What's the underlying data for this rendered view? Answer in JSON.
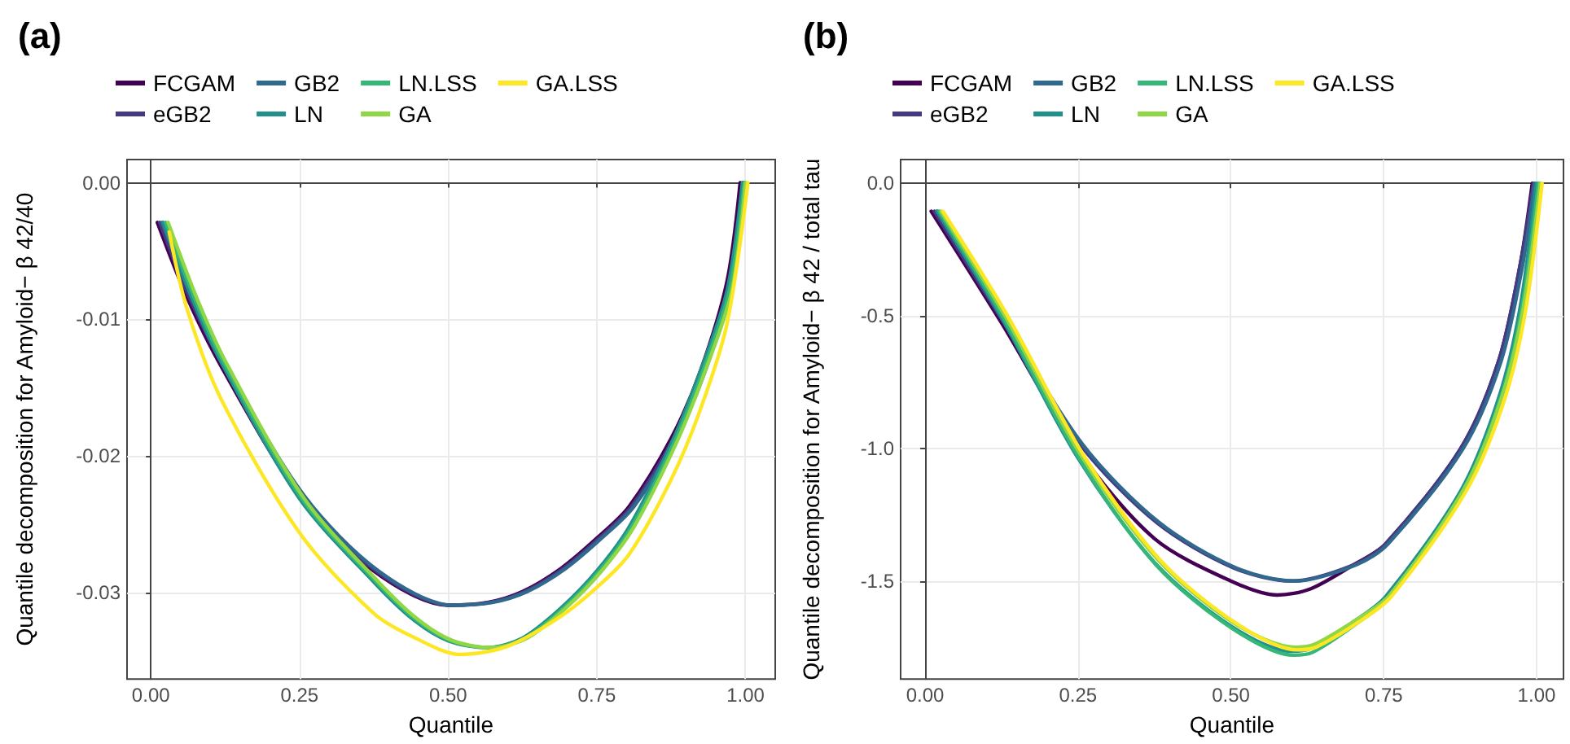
{
  "chart_data": [
    {
      "type": "line",
      "title": "(a)",
      "xlabel": "Quantile",
      "ylabel": "Quantile decomposition for Amyloid− β 42/40",
      "xlim": [
        -0.04,
        1.05
      ],
      "ylim": [
        -0.0363,
        0.0017
      ],
      "xticks": [
        {
          "value": 0,
          "label": "0.00"
        },
        {
          "value": 0.25,
          "label": "0.25"
        },
        {
          "value": 0.5,
          "label": "0.50"
        },
        {
          "value": 0.75,
          "label": "0.75"
        },
        {
          "value": 1,
          "label": "1.00"
        }
      ],
      "yticks": [
        {
          "value": -0.03,
          "label": "-0.03"
        },
        {
          "value": -0.02,
          "label": "-0.02"
        },
        {
          "value": -0.01,
          "label": "-0.01"
        },
        {
          "value": 0,
          "label": "0.00"
        }
      ],
      "grid": true,
      "legend": "top left",
      "marker": "none",
      "line_style": "solid",
      "series": [
        {
          "name": "FCGAM",
          "color": "#440154",
          "x": [
            0.011,
            0.06,
            0.118,
            0.25,
            0.375,
            0.5,
            0.566,
            0.625,
            0.69,
            0.75,
            0.804,
            0.875,
            0.924,
            0.969,
            0.991
          ],
          "values": [
            -0.0029,
            -0.0083,
            -0.0134,
            -0.0229,
            -0.0284,
            -0.0309,
            -0.0307,
            -0.0299,
            -0.0282,
            -0.026,
            -0.0237,
            -0.0187,
            -0.0138,
            -0.0072,
            0
          ]
        },
        {
          "name": "eGB2",
          "color": "#443a83",
          "x": [
            0.015,
            0.064,
            0.122,
            0.254,
            0.379,
            0.504,
            0.57,
            0.629,
            0.694,
            0.754,
            0.808,
            0.879,
            0.928,
            0.973,
            0.995
          ],
          "values": [
            -0.0029,
            -0.0083,
            -0.0134,
            -0.0229,
            -0.0284,
            -0.0309,
            -0.0307,
            -0.0299,
            -0.0282,
            -0.026,
            -0.0237,
            -0.0187,
            -0.0138,
            -0.0072,
            0
          ]
        },
        {
          "name": "GB2",
          "color": "#31688e",
          "x": [
            0.019,
            0.068,
            0.126,
            0.258,
            0.383,
            0.508,
            0.574,
            0.633,
            0.698,
            0.758,
            0.812,
            0.883,
            0.932,
            0.977,
            0.998
          ],
          "values": [
            -0.0029,
            -0.0083,
            -0.0134,
            -0.0229,
            -0.0284,
            -0.0309,
            -0.0307,
            -0.0299,
            -0.0282,
            -0.026,
            -0.0237,
            -0.0187,
            -0.0138,
            -0.0072,
            0
          ]
        },
        {
          "name": "LN",
          "color": "#21908c",
          "x": [
            0.021,
            0.07,
            0.118,
            0.25,
            0.375,
            0.44,
            0.5,
            0.566,
            0.625,
            0.69,
            0.75,
            0.804,
            0.875,
            0.924,
            0.969,
            0.995
          ],
          "values": [
            -0.0029,
            -0.0085,
            -0.0131,
            -0.0231,
            -0.0292,
            -0.0319,
            -0.0335,
            -0.034,
            -0.0333,
            -0.0311,
            -0.0284,
            -0.0252,
            -0.0191,
            -0.0138,
            -0.0079,
            0
          ]
        },
        {
          "name": "LN.LSS",
          "color": "#35b779",
          "x": [
            0.025,
            0.074,
            0.122,
            0.254,
            0.379,
            0.444,
            0.504,
            0.57,
            0.629,
            0.694,
            0.754,
            0.808,
            0.879,
            0.928,
            0.973,
            0.998
          ],
          "values": [
            -0.0029,
            -0.0085,
            -0.0131,
            -0.0231,
            -0.0292,
            -0.0319,
            -0.0335,
            -0.034,
            -0.0333,
            -0.0311,
            -0.0284,
            -0.0252,
            -0.0191,
            -0.0138,
            -0.0079,
            0
          ]
        },
        {
          "name": "GA",
          "color": "#8fd744",
          "x": [
            0.029,
            0.078,
            0.126,
            0.258,
            0.383,
            0.448,
            0.508,
            0.574,
            0.633,
            0.698,
            0.758,
            0.812,
            0.883,
            0.932,
            0.977,
            1.0
          ],
          "values": [
            -0.0029,
            -0.0085,
            -0.0131,
            -0.0231,
            -0.0292,
            -0.0319,
            -0.0335,
            -0.034,
            -0.0333,
            -0.0311,
            -0.0284,
            -0.0252,
            -0.0191,
            -0.0138,
            -0.0079,
            0
          ]
        },
        {
          "name": "GA.LSS",
          "color": "#fde725",
          "x": [
            0.031,
            0.06,
            0.118,
            0.25,
            0.375,
            0.44,
            0.52,
            0.6,
            0.69,
            0.75,
            0.804,
            0.875,
            0.924,
            0.969,
            1.004
          ],
          "values": [
            -0.0036,
            -0.0091,
            -0.0158,
            -0.0256,
            -0.0315,
            -0.0332,
            -0.0345,
            -0.0339,
            -0.0317,
            -0.0296,
            -0.0272,
            -0.0217,
            -0.0166,
            -0.0103,
            0
          ]
        }
      ]
    },
    {
      "type": "line",
      "title": "(b)",
      "xlabel": "Quantile",
      "ylabel": "Quantile decomposition for Amyloid− β 42 / total tau",
      "xlim": [
        -0.04,
        1.044
      ],
      "ylim": [
        -1.87,
        0.09
      ],
      "xticks": [
        {
          "value": 0,
          "label": "0.00"
        },
        {
          "value": 0.25,
          "label": "0.25"
        },
        {
          "value": 0.5,
          "label": "0.50"
        },
        {
          "value": 0.75,
          "label": "0.75"
        },
        {
          "value": 1,
          "label": "1.00"
        }
      ],
      "yticks": [
        {
          "value": -1.5,
          "label": "-1.5"
        },
        {
          "value": -1,
          "label": "-1.0"
        },
        {
          "value": -0.5,
          "label": "-0.5"
        },
        {
          "value": 0,
          "label": "0.0"
        }
      ],
      "grid": true,
      "legend": "top left",
      "marker": "none",
      "line_style": "solid",
      "series": [
        {
          "name": "FCGAM",
          "color": "#440154",
          "x": [
            0.01,
            0.126,
            0.25,
            0.375,
            0.5,
            0.576,
            0.63,
            0.7,
            0.753,
            0.876,
            0.938,
            0.973,
            0.993
          ],
          "values": [
            -0.105,
            -0.53,
            -1.006,
            -1.34,
            -1.5,
            -1.553,
            -1.53,
            -1.44,
            -1.36,
            -1.0,
            -0.67,
            -0.31,
            0
          ]
        },
        {
          "name": "eGB2",
          "color": "#443a83",
          "x": [
            0.015,
            0.13,
            0.254,
            0.379,
            0.504,
            0.6,
            0.7,
            0.753,
            0.876,
            0.938,
            0.973,
            0.995
          ],
          "values": [
            -0.105,
            -0.53,
            -0.986,
            -1.28,
            -1.45,
            -1.5,
            -1.44,
            -1.36,
            -1.0,
            -0.67,
            -0.31,
            0
          ]
        },
        {
          "name": "GB2",
          "color": "#31688e",
          "x": [
            0.019,
            0.134,
            0.258,
            0.383,
            0.508,
            0.604,
            0.704,
            0.757,
            0.88,
            0.942,
            0.977,
            0.997
          ],
          "values": [
            -0.105,
            -0.53,
            -0.986,
            -1.28,
            -1.45,
            -1.5,
            -1.44,
            -1.36,
            -1.0,
            -0.67,
            -0.31,
            0
          ]
        },
        {
          "name": "LN",
          "color": "#21908c",
          "x": [
            0.02,
            0.126,
            0.25,
            0.375,
            0.5,
            0.6,
            0.63,
            0.7,
            0.753,
            0.876,
            0.938,
            0.973,
            1.0
          ],
          "values": [
            -0.105,
            -0.51,
            -1.036,
            -1.43,
            -1.67,
            -1.765,
            -1.755,
            -1.655,
            -1.56,
            -1.16,
            -0.81,
            -0.47,
            0
          ]
        },
        {
          "name": "LN.LSS",
          "color": "#35b779",
          "x": [
            0.023,
            0.129,
            0.253,
            0.378,
            0.503,
            0.603,
            0.633,
            0.703,
            0.756,
            0.879,
            0.941,
            0.976,
            1.003
          ],
          "values": [
            -0.105,
            -0.51,
            -1.04,
            -1.44,
            -1.68,
            -1.78,
            -1.77,
            -1.665,
            -1.565,
            -1.16,
            -0.81,
            -0.47,
            0
          ]
        },
        {
          "name": "GA",
          "color": "#8fd744",
          "x": [
            0.026,
            0.132,
            0.256,
            0.381,
            0.506,
            0.606,
            0.636,
            0.706,
            0.759,
            0.882,
            0.944,
            0.979,
            1.006
          ],
          "values": [
            -0.105,
            -0.505,
            -1.03,
            -1.42,
            -1.66,
            -1.75,
            -1.74,
            -1.645,
            -1.555,
            -1.15,
            -0.8,
            -0.46,
            0
          ]
        },
        {
          "name": "GA.LSS",
          "color": "#fde725",
          "x": [
            0.029,
            0.135,
            0.259,
            0.384,
            0.509,
            0.609,
            0.639,
            0.709,
            0.762,
            0.885,
            0.947,
            0.982,
            1.009
          ],
          "values": [
            -0.105,
            -0.5,
            -1.025,
            -1.42,
            -1.66,
            -1.76,
            -1.75,
            -1.655,
            -1.56,
            -1.16,
            -0.82,
            -0.48,
            0
          ]
        }
      ]
    }
  ]
}
